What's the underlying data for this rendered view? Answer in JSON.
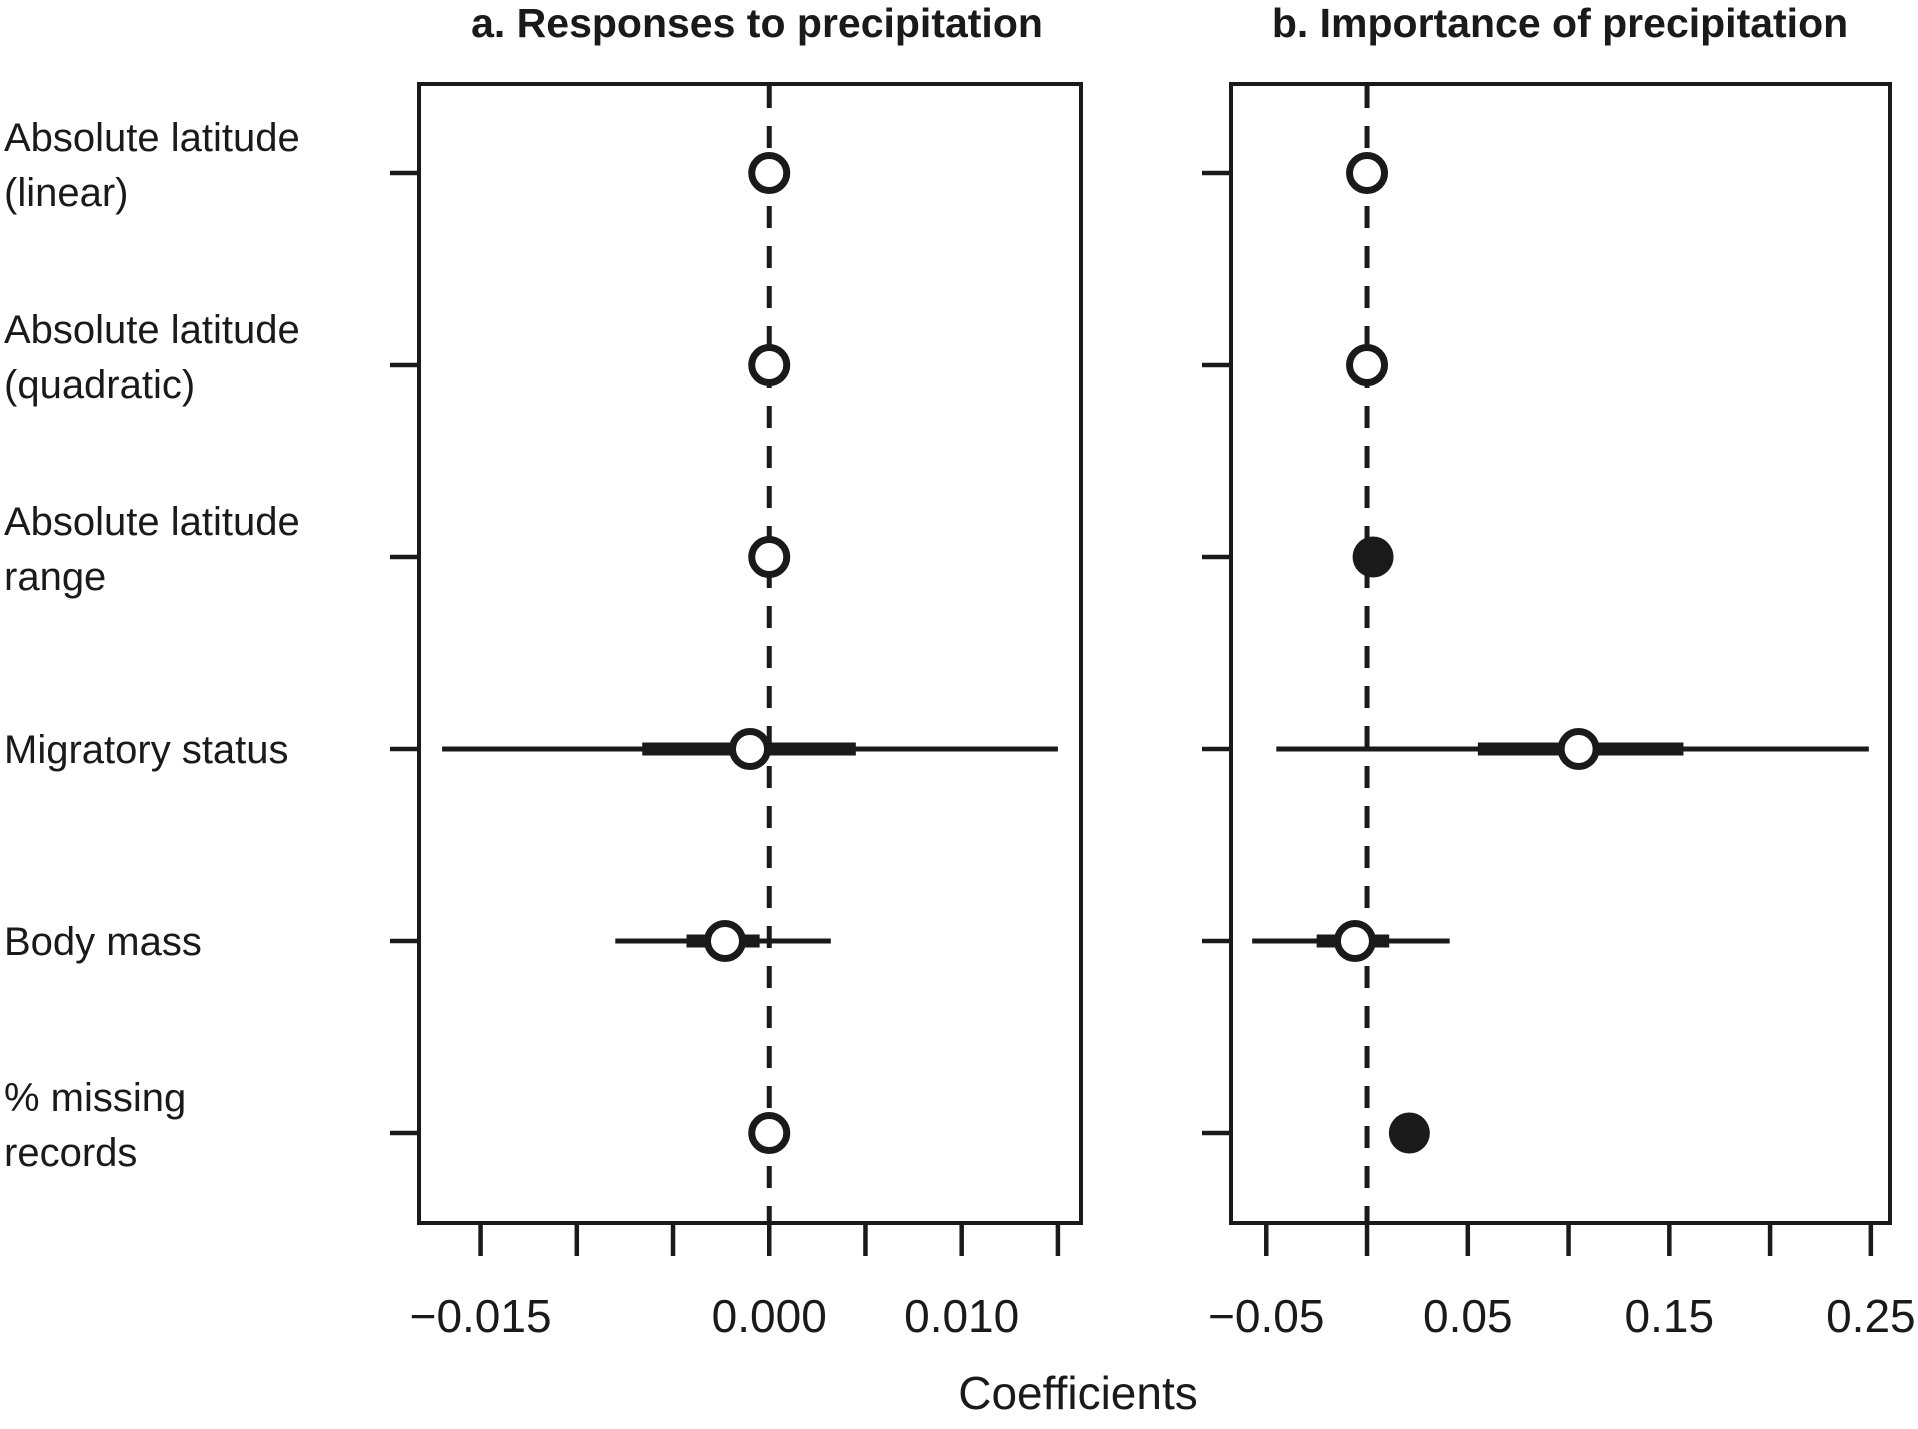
{
  "figure": {
    "xlabel": "Coefficients",
    "background": "#ffffff",
    "ink_color": "#1a1a1a"
  },
  "rows": [
    {
      "label_lines": [
        "Absolute latitude",
        "(linear)"
      ]
    },
    {
      "label_lines": [
        "Absolute latitude",
        "(quadratic)"
      ]
    },
    {
      "label_lines": [
        "Absolute latitude",
        "range"
      ]
    },
    {
      "label_lines": [
        "Migratory status"
      ]
    },
    {
      "label_lines": [
        "Body mass"
      ]
    },
    {
      "label_lines": [
        "% missing",
        "records"
      ]
    }
  ],
  "chart_data": [
    {
      "type": "forest",
      "panel_id": "a",
      "title": "a. Responses to precipitation",
      "xlabel": "Coefficients",
      "xlim": [
        -0.0182,
        0.0162
      ],
      "zero_line": 0,
      "grid": false,
      "xticks": [
        {
          "value": -0.015,
          "label": "−0.015"
        },
        {
          "value": -0.01,
          "label": ""
        },
        {
          "value": -0.005,
          "label": ""
        },
        {
          "value": 0.0,
          "label": "0.000"
        },
        {
          "value": 0.005,
          "label": ""
        },
        {
          "value": 0.01,
          "label": "0.010"
        },
        {
          "value": 0.015,
          "label": ""
        }
      ],
      "categories": [
        "Absolute latitude (linear)",
        "Absolute latitude (quadratic)",
        "Absolute latitude range",
        "Migratory status",
        "Body mass",
        "% missing records"
      ],
      "points": [
        {
          "estimate": 0.0,
          "ci_inner": null,
          "ci_outer": null,
          "filled": false
        },
        {
          "estimate": 0.0,
          "ci_inner": null,
          "ci_outer": null,
          "filled": false
        },
        {
          "estimate": 0.0,
          "ci_inner": null,
          "ci_outer": null,
          "filled": false
        },
        {
          "estimate": -0.001,
          "ci_inner": [
            -0.0066,
            0.0045
          ],
          "ci_outer": [
            -0.017,
            0.015
          ],
          "filled": false
        },
        {
          "estimate": -0.0023,
          "ci_inner": [
            -0.0043,
            -0.0005
          ],
          "ci_outer": [
            -0.008,
            0.0032
          ],
          "filled": false
        },
        {
          "estimate": 0.0,
          "ci_inner": null,
          "ci_outer": null,
          "filled": false
        }
      ]
    },
    {
      "type": "forest",
      "panel_id": "b",
      "title": "b. Importance of precipitation",
      "xlabel": "Coefficients",
      "xlim": [
        -0.0675,
        0.2595
      ],
      "zero_line": 0,
      "grid": false,
      "xticks": [
        {
          "value": -0.05,
          "label": "−0.05"
        },
        {
          "value": 0.0,
          "label": ""
        },
        {
          "value": 0.05,
          "label": "0.05"
        },
        {
          "value": 0.1,
          "label": ""
        },
        {
          "value": 0.15,
          "label": "0.15"
        },
        {
          "value": 0.2,
          "label": ""
        },
        {
          "value": 0.25,
          "label": "0.25"
        }
      ],
      "categories": [
        "Absolute latitude (linear)",
        "Absolute latitude (quadratic)",
        "Absolute latitude range",
        "Migratory status",
        "Body mass",
        "% missing records"
      ],
      "points": [
        {
          "estimate": 0.0,
          "ci_inner": null,
          "ci_outer": null,
          "filled": false
        },
        {
          "estimate": 0.0,
          "ci_inner": null,
          "ci_outer": null,
          "filled": false
        },
        {
          "estimate": 0.003,
          "ci_inner": null,
          "ci_outer": null,
          "filled": true
        },
        {
          "estimate": 0.105,
          "ci_inner": [
            0.055,
            0.157
          ],
          "ci_outer": [
            -0.045,
            0.249
          ],
          "filled": false
        },
        {
          "estimate": -0.006,
          "ci_inner": [
            -0.025,
            0.011
          ],
          "ci_outer": [
            -0.057,
            0.041
          ],
          "filled": false
        },
        {
          "estimate": 0.021,
          "ci_inner": null,
          "ci_outer": null,
          "filled": true
        }
      ]
    }
  ]
}
